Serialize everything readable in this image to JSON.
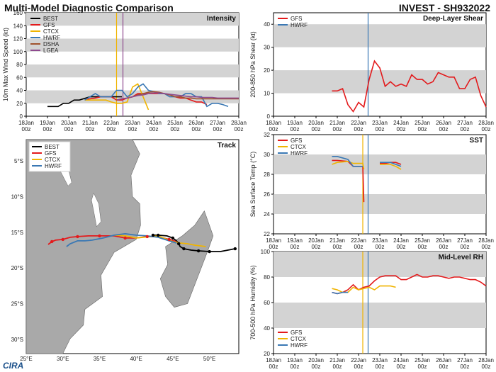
{
  "header": {
    "title_left": "Multi-Model Diagnostic Comparison",
    "title_right": "INVEST - SH932022"
  },
  "logo": {
    "text": "CIRA"
  },
  "colors": {
    "BEST": "#000000",
    "GFS": "#e31a1c",
    "CTCX": "#f0b400",
    "HWRF": "#3a78b4",
    "DSHA": "#a0522d",
    "LGEA": "#8e4a8e",
    "band": "#d3d3d3",
    "land": "#a9a9a9",
    "ocean": "#ffffff"
  },
  "time_axis": {
    "labels": [
      "18Jan\n00z",
      "19Jan\n00z",
      "20Jan\n00z",
      "21Jan\n00z",
      "22Jan\n00z",
      "23Jan\n00z",
      "24Jan\n00z",
      "25Jan\n00z",
      "26Jan\n00z",
      "27Jan\n00z",
      "28Jan\n00z"
    ]
  },
  "chart_data": [
    {
      "id": "intensity",
      "type": "line",
      "title": "Intensity",
      "ylabel": "10m Max Wind Speed (kt)",
      "ylim": [
        0,
        160
      ],
      "yticks": [
        0,
        20,
        40,
        60,
        80,
        100,
        120,
        140,
        160
      ],
      "xlim": [
        0,
        10
      ],
      "legend": [
        "BEST",
        "GFS",
        "CTCX",
        "HWRF",
        "DSHA",
        "LGEA"
      ],
      "vlines": [
        {
          "x": 4.25,
          "color": "#f0b400"
        },
        {
          "x": 4.55,
          "color": "#8e4a8e"
        }
      ],
      "series": [
        {
          "name": "BEST",
          "x": [
            1,
            1.5,
            1.75,
            2,
            2.25,
            2.5,
            3,
            3.5,
            4,
            4.25,
            4.5
          ],
          "y": [
            15,
            15,
            20,
            20,
            25,
            25,
            30,
            30,
            30,
            30,
            30
          ]
        },
        {
          "name": "GFS",
          "x": [
            2.75,
            3,
            3.25,
            3.5,
            3.75,
            4,
            4.25,
            4.5,
            4.75,
            5,
            5.25,
            5.5,
            5.75,
            6,
            6.25,
            6.5,
            6.75,
            7,
            7.25,
            7.5,
            7.75,
            8,
            8.25,
            8.5
          ],
          "y": [
            25,
            27,
            28,
            30,
            30,
            30,
            25,
            25,
            28,
            30,
            35,
            35,
            35,
            35,
            35,
            35,
            33,
            30,
            28,
            28,
            25,
            22,
            22,
            18
          ]
        },
        {
          "name": "CTCX",
          "x": [
            2.75,
            3,
            3.25,
            3.5,
            3.75,
            4,
            4.25,
            4.5,
            4.75,
            5,
            5.25,
            5.5,
            5.75
          ],
          "y": [
            25,
            25,
            25,
            25,
            25,
            22,
            20,
            20,
            22,
            45,
            50,
            30,
            10
          ]
        },
        {
          "name": "HWRF",
          "x": [
            2.75,
            3,
            3.25,
            3.5,
            3.75,
            4,
            4.25,
            4.5,
            4.75,
            5,
            5.25,
            5.5,
            5.75,
            6,
            6.25,
            6.5,
            6.75,
            7,
            7.25,
            7.5,
            7.75,
            8,
            8.25,
            8.5,
            8.75,
            9,
            9.25,
            9.5
          ],
          "y": [
            25,
            30,
            35,
            30,
            30,
            30,
            40,
            40,
            30,
            35,
            45,
            50,
            40,
            38,
            35,
            35,
            30,
            30,
            30,
            35,
            35,
            30,
            30,
            15,
            20,
            20,
            18,
            15
          ]
        },
        {
          "name": "DSHA",
          "x": [
            4.25,
            4.5,
            4.75,
            5,
            5.25,
            5.5,
            5.75,
            6,
            6.25,
            6.5,
            6.75,
            7,
            7.25,
            7.5,
            7.75,
            8,
            8.25,
            8.5,
            8.75,
            9,
            9.25,
            9.5,
            9.75,
            10
          ],
          "y": [
            25,
            27,
            28,
            30,
            33,
            35,
            37,
            38,
            37,
            35,
            33,
            30,
            30,
            28,
            28,
            27,
            27,
            27,
            27,
            27,
            27,
            27,
            27,
            27
          ]
        },
        {
          "name": "LGEA",
          "x": [
            4.25,
            4.5,
            4.75,
            5,
            5.25,
            5.5,
            5.75,
            6,
            6.25,
            6.5,
            6.75,
            7,
            7.25,
            7.5,
            7.75,
            8,
            8.25,
            8.5,
            8.75,
            9,
            9.25,
            9.5,
            9.75,
            10
          ],
          "y": [
            25,
            27,
            28,
            30,
            32,
            33,
            35,
            36,
            36,
            35,
            34,
            33,
            32,
            31,
            30,
            30,
            29,
            29,
            29,
            28,
            28,
            28,
            28,
            28
          ]
        }
      ]
    },
    {
      "id": "shear",
      "type": "line",
      "title": "Deep-Layer Shear",
      "ylabel": "200-850 hPa Shear (kt)",
      "ylim": [
        0,
        45
      ],
      "yticks": [
        0,
        10,
        20,
        30,
        40
      ],
      "xlim": [
        0,
        10
      ],
      "legend": [
        "GFS",
        "HWRF"
      ],
      "vlines": [
        {
          "x": 4.45,
          "color": "#3a78b4"
        }
      ],
      "series": [
        {
          "name": "GFS",
          "x": [
            2.75,
            3,
            3.25,
            3.5,
            3.75,
            4,
            4.25,
            4.5,
            4.75,
            5,
            5.25,
            5.5,
            5.75,
            6,
            6.25,
            6.5,
            6.75,
            7,
            7.25,
            7.5,
            7.75,
            8,
            8.25,
            8.5,
            8.75,
            9,
            9.25,
            9.5,
            9.75,
            10
          ],
          "y": [
            11,
            11,
            12,
            5,
            2,
            6,
            4,
            16,
            24,
            21,
            13,
            15,
            13,
            14,
            13,
            18,
            16,
            16,
            14,
            15,
            19,
            18,
            17,
            17,
            12,
            12,
            16,
            17,
            9,
            4
          ]
        }
      ]
    },
    {
      "id": "sst",
      "type": "line",
      "title": "SST",
      "ylabel": "Sea Surface Temp (°C)",
      "ylim": [
        22,
        32
      ],
      "yticks": [
        22,
        24,
        26,
        28,
        30,
        32
      ],
      "xlim": [
        0,
        10
      ],
      "legend": [
        "GFS",
        "CTCX",
        "HWRF"
      ],
      "vlines": [
        {
          "x": 4.45,
          "color": "#3a78b4"
        },
        {
          "x": 4.2,
          "color": "#f0b400"
        }
      ],
      "series": [
        {
          "name": "GFS",
          "x": [
            2.75,
            3,
            3.5,
            3.75,
            4,
            4.2,
            4.25
          ],
          "y": [
            29.4,
            29.4,
            29.3,
            28.8,
            28.8,
            28.8,
            25.2
          ]
        },
        {
          "name": "CTCX",
          "x": [
            2.75,
            3,
            3.5,
            3.75,
            4,
            4.2,
            4.25
          ],
          "y": [
            29.0,
            29.2,
            29.3,
            29.1,
            29.1,
            29.1,
            28.5
          ]
        },
        {
          "name": "HWRF",
          "x": [
            2.75,
            3,
            3.5,
            3.75,
            4,
            4.2
          ],
          "y": [
            29.8,
            29.8,
            29.5,
            28.8,
            28.8,
            28.8
          ]
        },
        {
          "name": "GFS",
          "x": [
            5,
            5.25,
            5.5,
            5.75,
            6
          ],
          "y": [
            29.1,
            29.1,
            29.2,
            29.2,
            29.0
          ]
        },
        {
          "name": "CTCX",
          "x": [
            5,
            5.25,
            5.5,
            5.75,
            6
          ],
          "y": [
            29.0,
            29.0,
            29.0,
            28.8,
            28.5
          ]
        },
        {
          "name": "HWRF",
          "x": [
            5,
            5.25,
            5.5,
            5.75,
            6
          ],
          "y": [
            29.2,
            29.2,
            29.2,
            29.0,
            28.8
          ]
        }
      ]
    },
    {
      "id": "rh",
      "type": "line",
      "title": "Mid-Level RH",
      "ylabel": "700-500 hPa Humidity (%)",
      "ylim": [
        20,
        100
      ],
      "yticks": [
        20,
        40,
        60,
        80,
        100
      ],
      "xlim": [
        0,
        10
      ],
      "legend": [
        "GFS",
        "CTCX",
        "HWRF"
      ],
      "vlines": [
        {
          "x": 4.45,
          "color": "#3a78b4"
        },
        {
          "x": 4.2,
          "color": "#f0b400"
        }
      ],
      "series": [
        {
          "name": "GFS",
          "x": [
            2.75,
            3,
            3.25,
            3.5,
            3.75,
            4,
            4.25,
            4.5,
            4.75,
            5,
            5.25,
            5.5,
            5.75,
            6,
            6.25,
            6.5,
            6.75,
            7,
            7.25,
            7.5,
            7.75,
            8,
            8.25,
            8.5,
            8.75,
            9,
            9.25,
            9.5,
            9.75,
            10
          ],
          "y": [
            68,
            67,
            68,
            70,
            74,
            70,
            72,
            73,
            77,
            80,
            81,
            81,
            81,
            78,
            78,
            80,
            82,
            80,
            80,
            81,
            81,
            80,
            79,
            80,
            80,
            79,
            78,
            78,
            76,
            73
          ]
        },
        {
          "name": "CTCX",
          "x": [
            2.75,
            3,
            3.25,
            3.5,
            3.75,
            4,
            4.25,
            4.5,
            4.75,
            5,
            5.25,
            5.5,
            5.75
          ],
          "y": [
            71,
            70,
            68,
            68,
            72,
            70,
            71,
            72,
            70,
            73,
            73,
            73,
            72
          ]
        },
        {
          "name": "HWRF",
          "x": [
            2.75,
            3,
            3.25,
            3.5
          ],
          "y": [
            68,
            67,
            68,
            68
          ]
        }
      ]
    },
    {
      "id": "track",
      "type": "line",
      "title": "Track",
      "legend": [
        "BEST",
        "GFS",
        "CTCX",
        "HWRF"
      ],
      "xlim": [
        25,
        54
      ],
      "ylim": [
        -32,
        -2
      ],
      "xticks": [
        25,
        30,
        35,
        40,
        45,
        50
      ],
      "xtick_labels": [
        "25°E",
        "30°E",
        "35°E",
        "40°E",
        "45°E",
        "50°E"
      ],
      "yticks": [
        -5,
        -10,
        -15,
        -20,
        -25,
        -30
      ],
      "ytick_labels": [
        "5°S",
        "10°S",
        "15°S",
        "20°S",
        "25°S",
        "30°S"
      ],
      "series": [
        {
          "name": "BEST",
          "lon": [
            53.5,
            52.5,
            51.5,
            50,
            48.5,
            47.5,
            46.5,
            46,
            45.8,
            45.5,
            45,
            44.2,
            43,
            42.3
          ],
          "lat": [
            -17.3,
            -17.5,
            -17.7,
            -17.7,
            -17.6,
            -17.5,
            -17.3,
            -17.0,
            -16.6,
            -16.2,
            -15.8,
            -15.5,
            -15.4,
            -15.4
          ]
        },
        {
          "name": "GFS",
          "lon": [
            45.5,
            44.5,
            43,
            41.5,
            40,
            38.5,
            37,
            35,
            33.5,
            32,
            31,
            30,
            29,
            28.5,
            28
          ],
          "lat": [
            -16.3,
            -16.0,
            -15.6,
            -15.6,
            -15.8,
            -15.8,
            -15.5,
            -15.5,
            -15.5,
            -15.6,
            -15.7,
            -16.0,
            -16.1,
            -16.3,
            -16.7
          ]
        },
        {
          "name": "CTCX",
          "lon": [
            49.5,
            48,
            47,
            46,
            45,
            44,
            43,
            42,
            40,
            38.5,
            37
          ],
          "lat": [
            -17.0,
            -16.8,
            -16.6,
            -16.5,
            -16.3,
            -15.9,
            -15.5,
            -15.6,
            -15.8,
            -15.5,
            -15.4
          ]
        },
        {
          "name": "HWRF",
          "lon": [
            45.5,
            44.5,
            43,
            41.5,
            40,
            38.5,
            37,
            35.5,
            34,
            33,
            32,
            31,
            30.5
          ],
          "lat": [
            -16.5,
            -16.2,
            -15.7,
            -15.5,
            -15.4,
            -15.2,
            -15.4,
            -15.8,
            -16.1,
            -16.2,
            -16.2,
            -16.6,
            -17.0
          ]
        }
      ],
      "markers": [
        {
          "name": "BEST",
          "lon": [
            53.5,
            50,
            48.5,
            46.5,
            45.8,
            45,
            43,
            42.3
          ],
          "lat": [
            -17.3,
            -17.7,
            -17.6,
            -17.3,
            -16.6,
            -15.8,
            -15.4,
            -15.4
          ]
        },
        {
          "name": "GFS",
          "lon": [
            44.5,
            41.5,
            38.5,
            35,
            32,
            30,
            28.5
          ],
          "lat": [
            -16.0,
            -15.6,
            -15.8,
            -15.5,
            -15.6,
            -16.0,
            -16.3
          ]
        }
      ]
    }
  ]
}
